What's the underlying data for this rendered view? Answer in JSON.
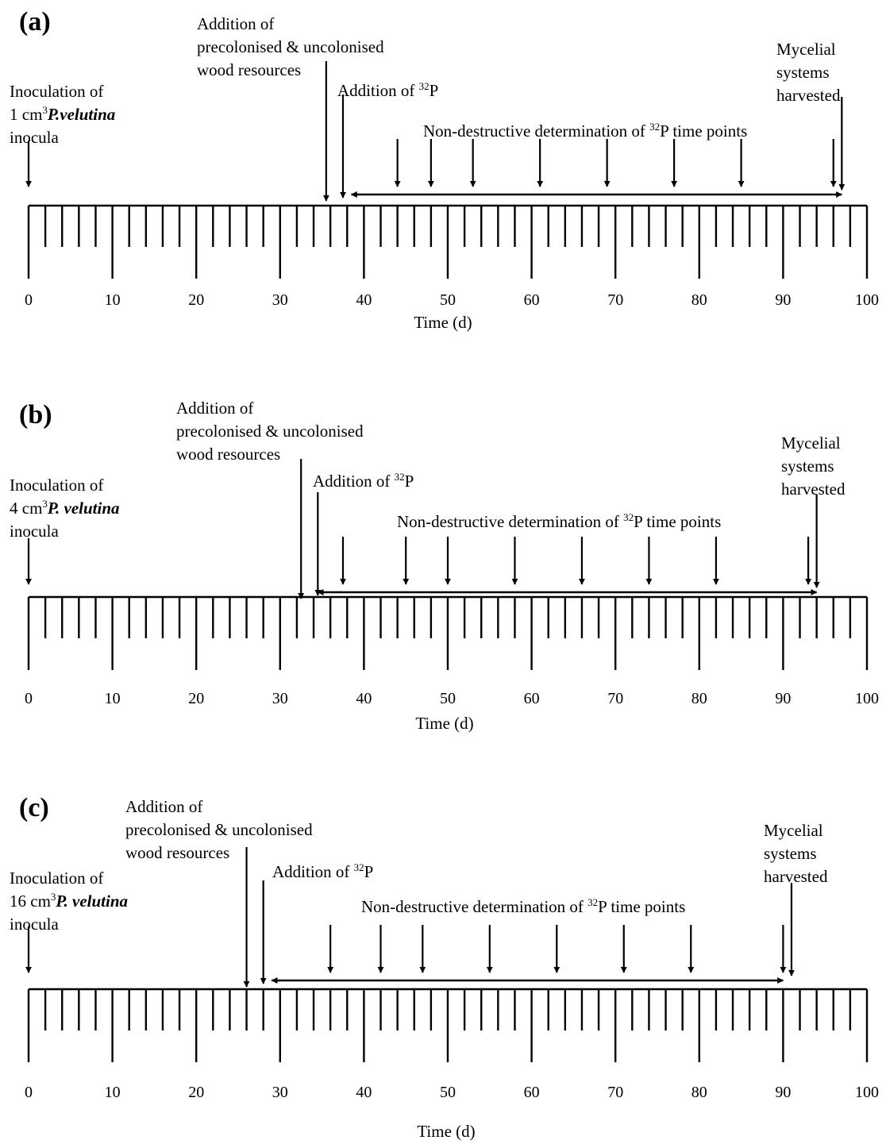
{
  "panels": [
    {
      "label": "(a)",
      "inoculation": [
        "Inoculation of",
        "1 cm",
        "3",
        "P.velutina",
        "inocula"
      ],
      "addition_wood": [
        "Addition of",
        "precolonised & uncolonised",
        "wood resources"
      ],
      "addition_p32": [
        "Addition of ",
        "32",
        "P"
      ],
      "nondestructive": [
        "Non-destructive determination of ",
        "32",
        "P time points"
      ],
      "harvested": [
        "Mycelial",
        "systems",
        "harvested"
      ],
      "x_label": "Time (d)"
    },
    {
      "label": "(b)",
      "inoculation": [
        "Inoculation of",
        "4 cm",
        "3",
        "P. velutina",
        "inocula"
      ],
      "addition_wood": [
        "Addition of",
        "precolonised & uncolonised",
        "wood resources"
      ],
      "addition_p32": [
        "Addition of ",
        "32",
        "P"
      ],
      "nondestructive": [
        "Non-destructive determination of ",
        "32",
        "P time points"
      ],
      "harvested": [
        "Mycelial",
        "systems",
        "harvested"
      ],
      "x_label": "Time (d)"
    },
    {
      "label": "(c)",
      "inoculation": [
        "Inoculation of",
        "16 cm",
        "3",
        "P. velutina",
        "inocula"
      ],
      "addition_wood": [
        "Addition of",
        "precolonised & uncolonised",
        "wood resources"
      ],
      "addition_p32": [
        "Addition of ",
        "32",
        "P"
      ],
      "nondestructive": [
        "Non-destructive determination of ",
        "32",
        "P time points"
      ],
      "harvested": [
        "Mycelial",
        "systems",
        "harvested"
      ],
      "x_label": "Time (d)"
    }
  ],
  "chart_data": [
    {
      "type": "timeline",
      "xlabel": "Time (d)",
      "xlim": [
        0,
        100
      ],
      "tick_labels": [
        "0",
        "10",
        "20",
        "30",
        "40",
        "50",
        "60",
        "70",
        "80",
        "90",
        "100"
      ],
      "events": {
        "inoculation": 0,
        "addition_wood": 35.5,
        "addition_p32": 37.5,
        "nondestructive_time_points": [
          44,
          48,
          53,
          61,
          69,
          77,
          85,
          96
        ],
        "harvest": 97,
        "measurement_span": [
          38.5,
          97
        ]
      }
    },
    {
      "type": "timeline",
      "xlabel": "Time (d)",
      "xlim": [
        0,
        100
      ],
      "tick_labels": [
        "0",
        "10",
        "20",
        "30",
        "40",
        "50",
        "60",
        "70",
        "80",
        "90",
        "100"
      ],
      "events": {
        "inoculation": 0,
        "addition_wood": 32.5,
        "addition_p32": 34.5,
        "nondestructive_time_points": [
          37.5,
          45,
          50,
          58,
          66,
          74,
          82,
          93
        ],
        "harvest": 94,
        "measurement_span": [
          34.5,
          94
        ]
      }
    },
    {
      "type": "timeline",
      "xlabel": "Time (d)",
      "xlim": [
        0,
        100
      ],
      "tick_labels": [
        "0",
        "10",
        "20",
        "30",
        "40",
        "50",
        "60",
        "70",
        "80",
        "90",
        "100"
      ],
      "events": {
        "inoculation": 0,
        "addition_wood": 26,
        "addition_p32": 28,
        "nondestructive_time_points": [
          36,
          42,
          47,
          55,
          63,
          71,
          79,
          90
        ],
        "harvest": 91,
        "measurement_span": [
          29,
          90
        ]
      }
    }
  ]
}
